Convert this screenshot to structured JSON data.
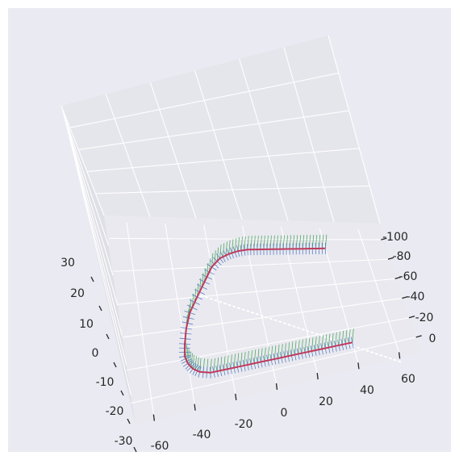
{
  "chart_data": {
    "type": "line",
    "projection": "3d",
    "title": "",
    "xlabel": "",
    "ylabel": "",
    "zlabel": "",
    "grid": true,
    "style": "seaborn-darkgrid",
    "colors": {
      "figure_background": "#eaeaf2",
      "pane_back": "#e5e5ec",
      "pane_left": "#dfdfe6",
      "pane_floor": "#e9e9ef",
      "grid": "#ffffff",
      "path": "#c0395a",
      "normal_vectors": "#5a7fc4",
      "up_vectors": "#55a868",
      "reference_line": "#ffffff"
    },
    "axes": {
      "x_ticks": [
        -60,
        -40,
        -20,
        0,
        20,
        40,
        60
      ],
      "y_ticks": [
        0,
        -20,
        -40,
        -60,
        -80,
        -100
      ],
      "z_ticks": [
        -30,
        -20,
        -10,
        0,
        10,
        20,
        30
      ],
      "xlim": [
        -70,
        70
      ],
      "ylim": [
        -110,
        10
      ],
      "zlim": [
        -35,
        35
      ]
    },
    "series": [
      {
        "kind": "path",
        "x": [
          40,
          35,
          30,
          25,
          20,
          15,
          10,
          5,
          0,
          -5,
          -10,
          -15,
          -20,
          -25,
          -30,
          -35,
          -38,
          -40,
          -41,
          -40,
          -38,
          -35,
          -30,
          -25,
          -20,
          -15,
          -10,
          -5,
          0,
          5,
          10,
          15,
          20,
          25,
          30,
          35,
          40
        ],
        "y": [
          -92,
          -92,
          -92,
          -92,
          -92,
          -92,
          -92,
          -92,
          -92,
          -92,
          -92,
          -92,
          -92,
          -92,
          -92,
          -90,
          -87,
          -83,
          -78,
          -70,
          -60,
          -50,
          -40,
          -30,
          -20,
          -14,
          -11,
          -9,
          -8,
          -8,
          -8,
          -8,
          -8,
          -8,
          -8,
          -8,
          -8
        ],
        "z": [
          0,
          0,
          0,
          0,
          0,
          0,
          0,
          0,
          0,
          0,
          0,
          0,
          0,
          0,
          0,
          0,
          0,
          0,
          0,
          0,
          0,
          0,
          0,
          0,
          0,
          0,
          0,
          0,
          0,
          0,
          0,
          0,
          0,
          0,
          0,
          0,
          0
        ]
      },
      {
        "kind": "reference-line",
        "x": [
          -30,
          60
        ],
        "y": [
          -38,
          -120
        ],
        "z": [
          0,
          0
        ]
      }
    ]
  }
}
